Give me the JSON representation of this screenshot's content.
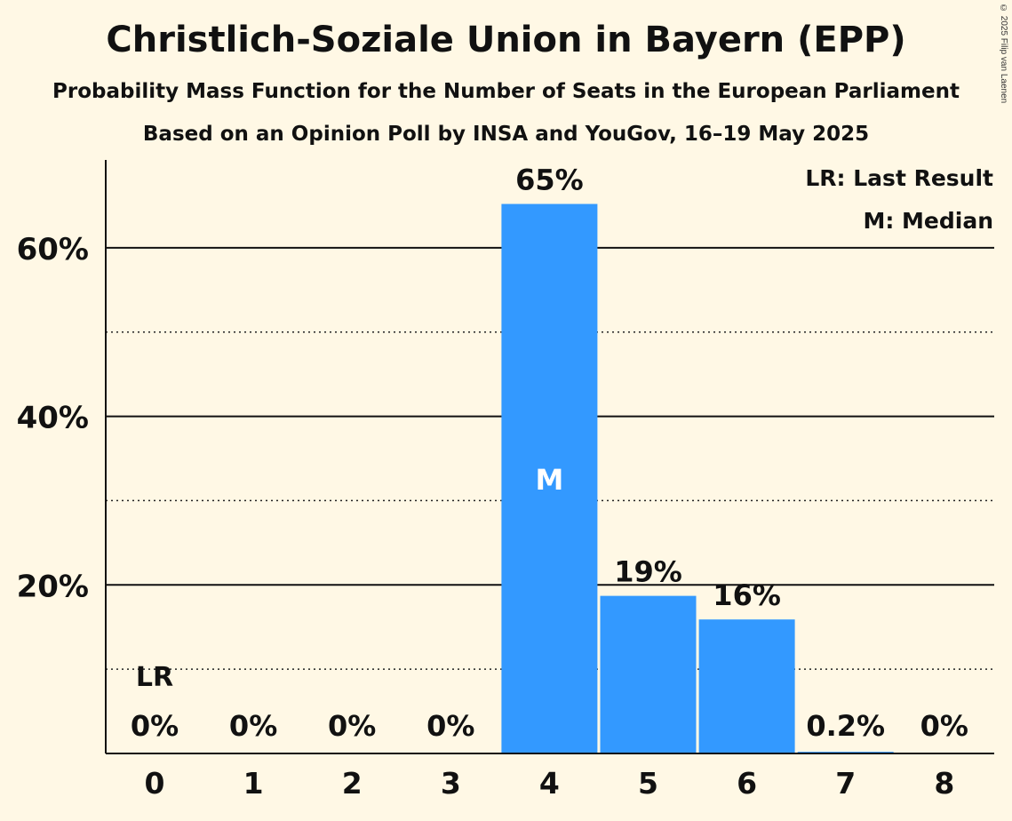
{
  "chart_data": {
    "type": "bar",
    "title": "Christlich-Soziale Union in Bayern (EPP)",
    "subtitle": "Probability Mass Function for the Number of Seats in the European Parliament",
    "subtitle2": "Based on an Opinion Poll by INSA and YouGov, 16–19 May 2025",
    "copyright": "© 2025 Filip van Laenen",
    "categories": [
      "0",
      "1",
      "2",
      "3",
      "4",
      "5",
      "6",
      "7",
      "8"
    ],
    "values": [
      0,
      0,
      0,
      0,
      65.2,
      18.7,
      15.9,
      0.2,
      0
    ],
    "value_labels": [
      "0%",
      "0%",
      "0%",
      "0%",
      "65%",
      "19%",
      "16%",
      "0.2%",
      "0%"
    ],
    "ylim": [
      0,
      70
    ],
    "y_major_ticks": [
      20,
      40,
      60
    ],
    "y_tick_labels": [
      "20%",
      "40%",
      "60%"
    ],
    "y_minor_gridlines": [
      10,
      30,
      50
    ],
    "last_result_index": 0,
    "last_result_marker": "LR",
    "median_index": 4,
    "median_marker": "M",
    "legend": [
      "LR: Last Result",
      "M: Median"
    ],
    "legend_position": "top-right",
    "bar_color": "#3399ff",
    "xlabel": "",
    "ylabel": ""
  }
}
